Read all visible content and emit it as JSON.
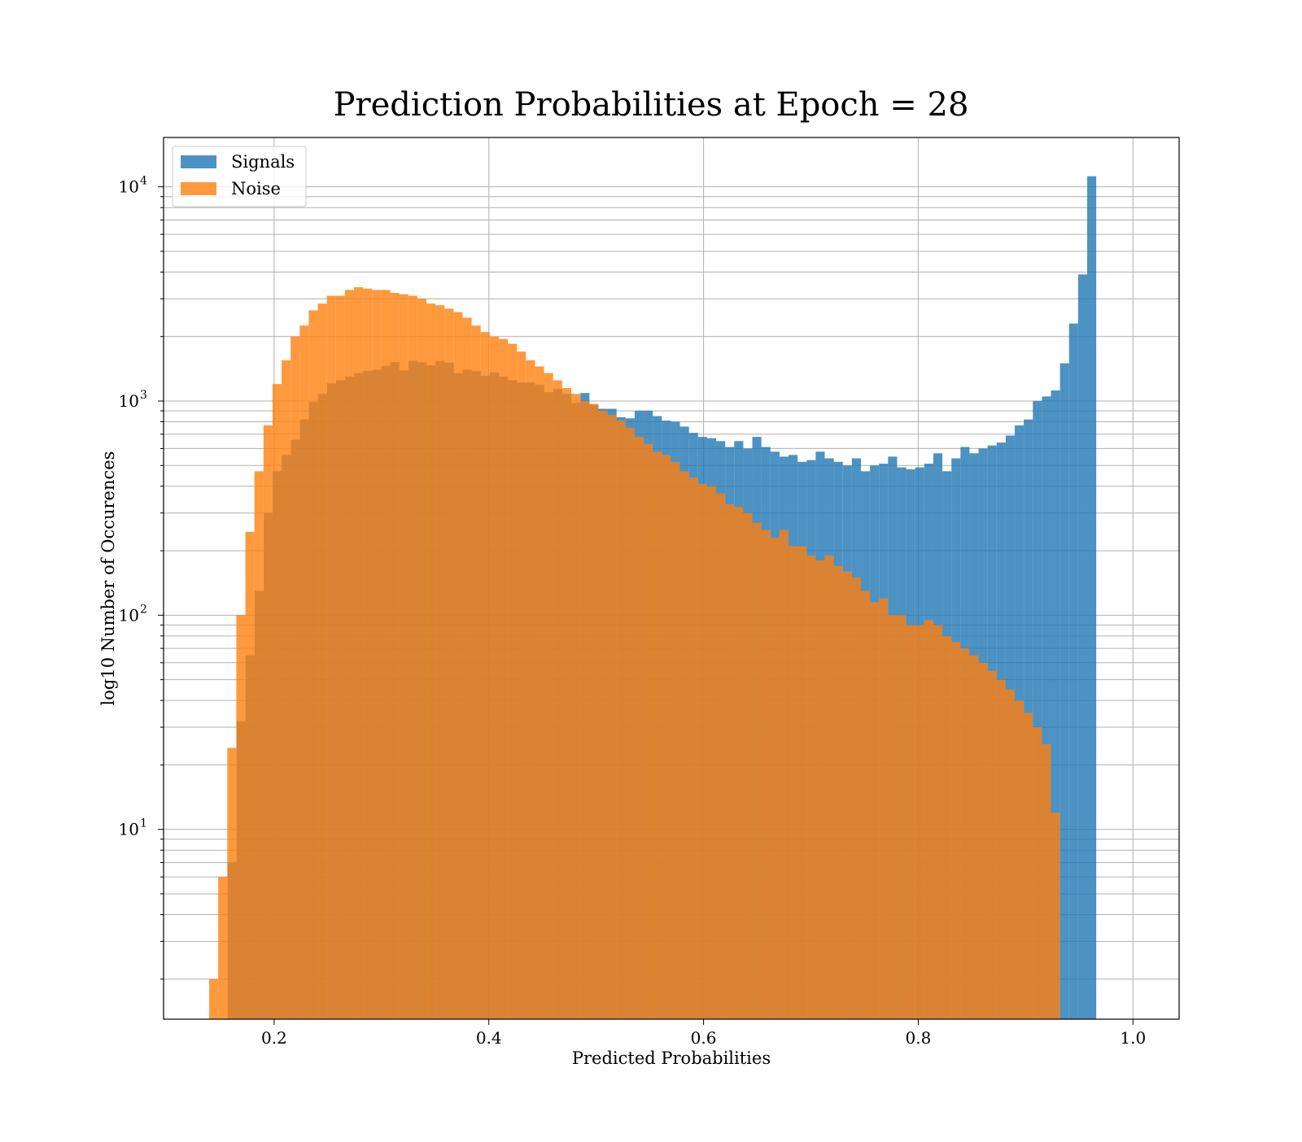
{
  "chart_data": {
    "type": "bar",
    "title": "Prediction Probabilities at Epoch = 28",
    "xlabel": "Predicted Probabilities",
    "ylabel": "log10 Number of Occurences",
    "xlim": [
      0.097,
      1.043
    ],
    "ylim": [
      1.3,
      17000
    ],
    "yscale": "log",
    "grid": true,
    "legend_position": "top-left",
    "x_ticks": [
      {
        "value": 0.2,
        "label": "0.2"
      },
      {
        "value": 0.4,
        "label": "0.4"
      },
      {
        "value": 0.6,
        "label": "0.6"
      },
      {
        "value": 0.8,
        "label": "0.8"
      },
      {
        "value": 1.0,
        "label": "1.0"
      }
    ],
    "y_ticks": [
      {
        "value": 10,
        "base": "10",
        "exp": "1"
      },
      {
        "value": 100,
        "base": "10",
        "exp": "2"
      },
      {
        "value": 1000,
        "base": "10",
        "exp": "3"
      },
      {
        "value": 10000,
        "base": "10",
        "exp": "4"
      }
    ],
    "series": [
      {
        "name": "Signals",
        "color": "#1f77b4",
        "bin_start": 0.1565,
        "bin_width": 0.00843,
        "values": [
          7,
          32,
          65,
          130,
          300,
          470,
          560,
          660,
          820,
          990,
          1080,
          1210,
          1250,
          1300,
          1350,
          1380,
          1400,
          1460,
          1520,
          1390,
          1540,
          1520,
          1470,
          1540,
          1510,
          1350,
          1400,
          1380,
          1310,
          1360,
          1300,
          1250,
          1220,
          1220,
          1190,
          1100,
          1140,
          1080,
          980,
          1090,
          960,
          920,
          920,
          840,
          830,
          900,
          900,
          850,
          810,
          800,
          760,
          710,
          680,
          670,
          650,
          610,
          650,
          600,
          680,
          610,
          580,
          550,
          560,
          520,
          530,
          580,
          540,
          520,
          500,
          540,
          470,
          500,
          510,
          550,
          490,
          480,
          490,
          510,
          570,
          470,
          540,
          610,
          570,
          600,
          620,
          640,
          690,
          770,
          820,
          1000,
          1050,
          1120,
          1500,
          2300,
          3900,
          11200
        ]
      },
      {
        "name": "Noise",
        "color": "#ff7f0e",
        "bin_start": 0.1395,
        "bin_width": 0.00843,
        "values": [
          2,
          6,
          24,
          100,
          245,
          470,
          770,
          1200,
          1550,
          2000,
          2250,
          2650,
          2850,
          3100,
          3100,
          3300,
          3400,
          3350,
          3300,
          3300,
          3200,
          3150,
          3100,
          3000,
          2850,
          2800,
          2700,
          2600,
          2450,
          2250,
          2100,
          2000,
          1950,
          1850,
          1700,
          1550,
          1450,
          1350,
          1250,
          1150,
          1080,
          1000,
          970,
          900,
          860,
          810,
          750,
          680,
          630,
          580,
          560,
          520,
          470,
          440,
          410,
          400,
          370,
          330,
          320,
          300,
          270,
          250,
          230,
          250,
          210,
          210,
          190,
          180,
          190,
          170,
          160,
          150,
          130,
          115,
          120,
          100,
          100,
          90,
          90,
          95,
          90,
          80,
          75,
          70,
          65,
          60,
          55,
          50,
          45,
          40,
          35,
          30,
          25,
          12
        ]
      }
    ]
  }
}
